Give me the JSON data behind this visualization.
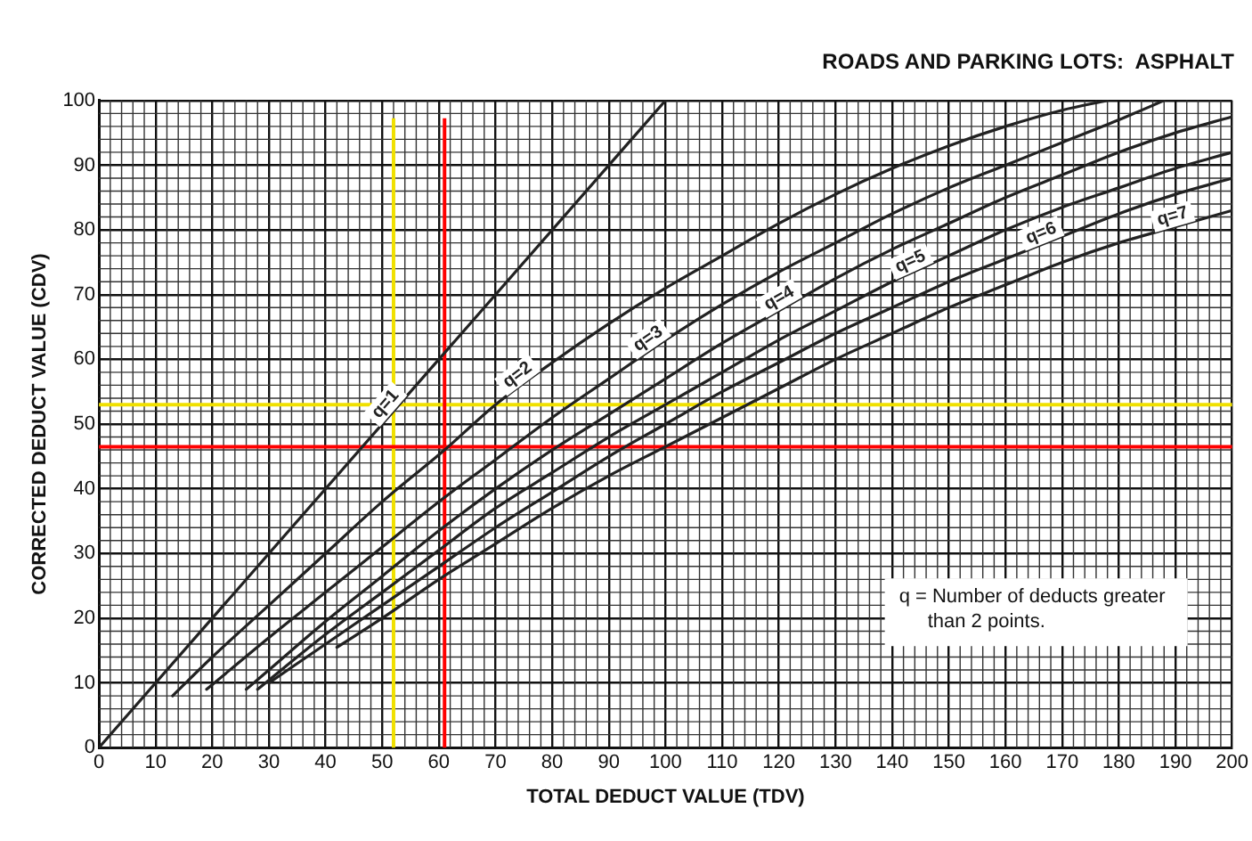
{
  "chart_data": {
    "type": "line",
    "title": "ROADS AND PARKING LOTS:  ASPHALT",
    "xlabel": "TOTAL DEDUCT VALUE (TDV)",
    "ylabel": "CORRECTED DEDUCT VALUE (CDV)",
    "annotations": [
      "q = Number of deducts greater than 2 points."
    ],
    "xlim": [
      0,
      200
    ],
    "ylim": [
      0,
      100
    ],
    "xticks": [
      0,
      10,
      20,
      30,
      40,
      50,
      60,
      70,
      80,
      90,
      100,
      110,
      120,
      130,
      140,
      150,
      160,
      170,
      180,
      190,
      200
    ],
    "yticks": [
      0,
      10,
      20,
      30,
      40,
      50,
      60,
      70,
      80,
      90,
      100
    ],
    "grid": true,
    "legend": false,
    "marker": "none",
    "line_style": "solid",
    "series": [
      {
        "name": "q=1",
        "color": "#222222",
        "x": [
          0,
          100
        ],
        "values": [
          0,
          100
        ]
      },
      {
        "name": "q=2",
        "color": "#222222",
        "x": [
          13,
          20,
          30,
          40,
          50,
          61,
          70,
          80,
          90,
          100,
          110,
          120,
          130,
          140,
          150,
          160,
          170,
          178
        ],
        "values": [
          8,
          14,
          22,
          30,
          38,
          46,
          53,
          59.5,
          65.5,
          71,
          76,
          81,
          85.5,
          89.5,
          93,
          96,
          98.5,
          100
        ]
      },
      {
        "name": "q=3",
        "color": "#222222",
        "x": [
          19,
          30,
          40,
          50,
          60,
          70,
          80,
          90,
          100,
          110,
          120,
          130,
          140,
          150,
          160,
          170,
          180,
          188
        ],
        "values": [
          9,
          17,
          24,
          31,
          38,
          44.5,
          51,
          57,
          63,
          68.5,
          73.5,
          78,
          82.5,
          86.5,
          90,
          93.5,
          97,
          100
        ]
      },
      {
        "name": "q=4",
        "color": "#222222",
        "x": [
          26,
          30,
          40,
          50,
          60,
          70,
          80,
          90,
          100,
          110,
          120,
          130,
          140,
          150,
          160,
          170,
          180,
          190,
          200
        ],
        "values": [
          9,
          12,
          19.5,
          26.5,
          33.5,
          40,
          46,
          51.5,
          57,
          62.5,
          67.5,
          72.5,
          77,
          81,
          85,
          88.5,
          92,
          95,
          97.5
        ]
      },
      {
        "name": "q=5",
        "color": "#222222",
        "x": [
          28,
          40,
          50,
          60,
          70,
          80,
          90,
          100,
          110,
          120,
          130,
          140,
          150,
          160,
          170,
          180,
          190,
          200
        ],
        "values": [
          9,
          17.5,
          24,
          30.5,
          37,
          42.5,
          48,
          53,
          58,
          63,
          67.5,
          72,
          76,
          80,
          83.5,
          86.5,
          89.5,
          92
        ]
      },
      {
        "name": "q=6",
        "color": "#222222",
        "x": [
          30,
          40,
          50,
          60,
          70,
          80,
          90,
          100,
          110,
          120,
          130,
          140,
          150,
          160,
          170,
          180,
          190,
          200
        ],
        "values": [
          10,
          16,
          22,
          28,
          34,
          39.5,
          45,
          50,
          55,
          59.5,
          64,
          68,
          72,
          75.5,
          79,
          82.5,
          85.5,
          88
        ]
      },
      {
        "name": "q=7",
        "color": "#222222",
        "x": [
          42,
          50,
          60,
          70,
          80,
          90,
          100,
          110,
          120,
          130,
          140,
          150,
          160,
          170,
          180,
          190,
          200
        ],
        "values": [
          15.5,
          20,
          26,
          31.5,
          37,
          42,
          46.5,
          51,
          55.5,
          60,
          64,
          68,
          71.5,
          75,
          78,
          80.5,
          83
        ]
      }
    ],
    "ref_lines": [
      {
        "axis": "x",
        "value": 52,
        "color": "#f0e000"
      },
      {
        "axis": "y",
        "value": 53,
        "color": "#f0e000"
      },
      {
        "axis": "x",
        "value": 61,
        "color": "#ff0000"
      },
      {
        "axis": "y",
        "value": 46.5,
        "color": "#ff0000"
      }
    ]
  }
}
